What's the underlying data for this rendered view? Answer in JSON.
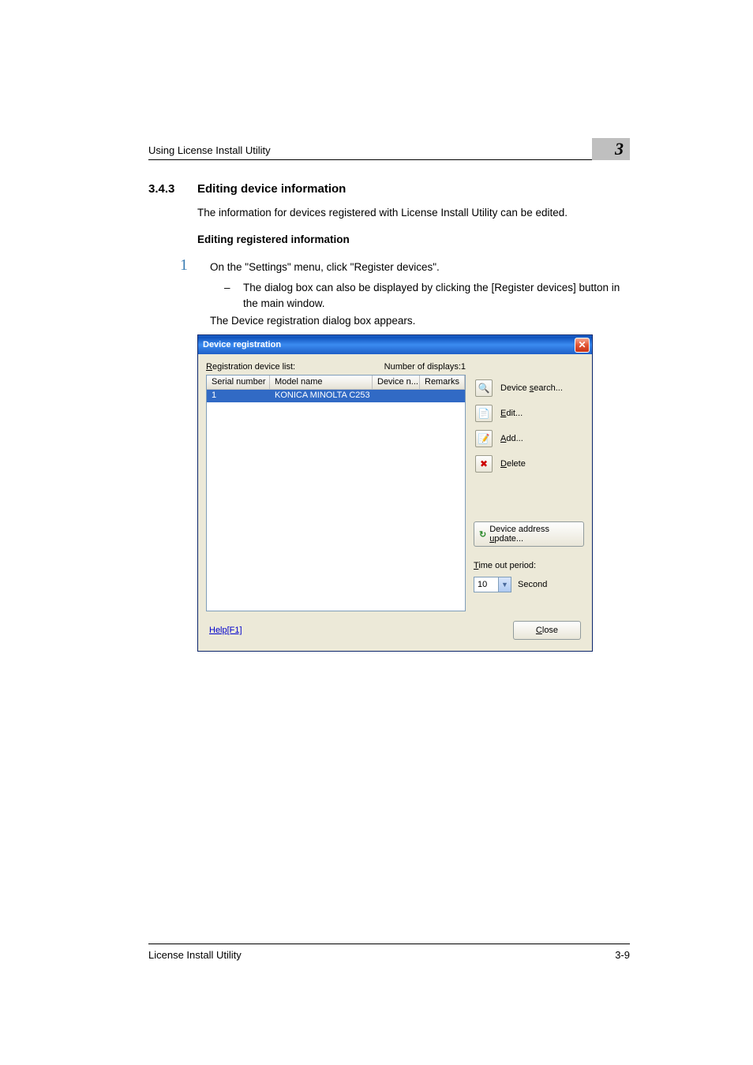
{
  "chapter_number": "3",
  "running_head": "Using License Install Utility",
  "section": {
    "number": "3.4.3",
    "title": "Editing device information"
  },
  "intro_text": "The information for devices registered with License Install Utility can be edited.",
  "sub_heading": "Editing registered information",
  "step": {
    "number": "1",
    "text": "On the \"Settings\" menu, click \"Register devices\".",
    "bullet_text": "The dialog box can also be displayed by clicking the [Register devices] button in the main window.",
    "result_text": "The Device registration dialog box appears."
  },
  "dialog": {
    "title": "Device registration",
    "list_caption_prefix": "R",
    "list_caption_rest": "egistration device list:",
    "count_label": "Number of displays:",
    "count_value": "1",
    "columns": {
      "c1": "Serial number",
      "c2": "Model name",
      "c3": "Device n...",
      "c4": "Remarks"
    },
    "row": {
      "serial": "1",
      "model": "KONICA MINOLTA C253",
      "devname": "",
      "remarks": ""
    },
    "buttons": {
      "search_prefix": "Device ",
      "search_u": "s",
      "search_suffix": "earch...",
      "edit_u": "E",
      "edit_rest": "dit...",
      "add_u": "A",
      "add_rest": "dd...",
      "delete_u": "D",
      "delete_rest": "elete"
    },
    "refresh_prefix": "Device address ",
    "refresh_u": "u",
    "refresh_suffix": "pdate...",
    "timeout_label_u": "T",
    "timeout_label_rest": "ime out period:",
    "timeout_value": "10",
    "timeout_unit": "Second",
    "help_text": "Help[F1]",
    "close_u": "C",
    "close_rest": "lose"
  },
  "icons": {
    "search": "🔍",
    "edit": "📄",
    "add": "📝",
    "delete": "✖",
    "refresh": "↻"
  },
  "colors": {
    "selection_bg": "#316ac5",
    "titlebar_gradient_top": "#2a6fd6",
    "step_num_color": "#3a7db3",
    "chapter_box_bg": "#bfbfbf"
  },
  "footer": {
    "left": "License Install Utility",
    "right": "3-9"
  }
}
